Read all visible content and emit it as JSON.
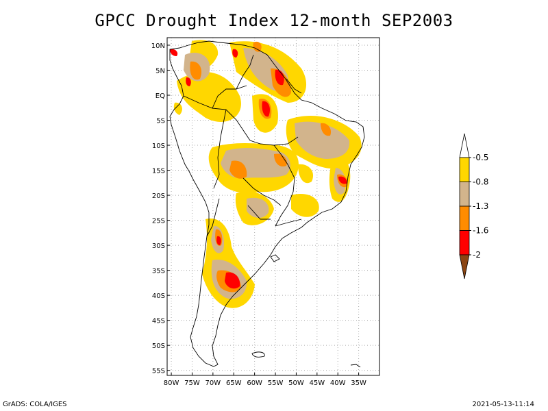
{
  "title": "GPCC Drought Index 12-month SEP2003",
  "footer": {
    "left": "GrADS: COLA/IGES",
    "right": "2021-05-13-11:14"
  },
  "map": {
    "lon_range": [
      -81,
      -30
    ],
    "lat_range": [
      -56,
      11.5
    ],
    "grid": "dotted",
    "lat_ticks": [
      {
        "value": 10,
        "label": "10N"
      },
      {
        "value": 5,
        "label": "5N"
      },
      {
        "value": 0,
        "label": "EQ"
      },
      {
        "value": -5,
        "label": "5S"
      },
      {
        "value": -10,
        "label": "10S"
      },
      {
        "value": -15,
        "label": "15S"
      },
      {
        "value": -20,
        "label": "20S"
      },
      {
        "value": -25,
        "label": "25S"
      },
      {
        "value": -30,
        "label": "30S"
      },
      {
        "value": -35,
        "label": "35S"
      },
      {
        "value": -40,
        "label": "40S"
      },
      {
        "value": -45,
        "label": "45S"
      },
      {
        "value": -50,
        "label": "50S"
      },
      {
        "value": -55,
        "label": "55S"
      }
    ],
    "lon_ticks": [
      {
        "value": -80,
        "label": "80W"
      },
      {
        "value": -75,
        "label": "75W"
      },
      {
        "value": -70,
        "label": "70W"
      },
      {
        "value": -65,
        "label": "65W"
      },
      {
        "value": -60,
        "label": "60W"
      },
      {
        "value": -55,
        "label": "55W"
      },
      {
        "value": -50,
        "label": "50W"
      },
      {
        "value": -45,
        "label": "45W"
      },
      {
        "value": -40,
        "label": "40W"
      },
      {
        "value": -35,
        "label": "35W"
      }
    ]
  },
  "legend": {
    "type": "colorbar",
    "levels": [
      {
        "label": "-0.5",
        "color": "#ffd700"
      },
      {
        "label": "-0.8",
        "color": "#d2b48c"
      },
      {
        "label": "-1.3",
        "color": "#ff8c00"
      },
      {
        "label": "-1.6",
        "color": "#ff0000"
      },
      {
        "label": "-2",
        "color": "#8b4513"
      }
    ],
    "colors": {
      "top_triangle": "#ffffff",
      "bin_1": "#ffd700",
      "bin_2": "#d2b48c",
      "bin_3": "#ff8c00",
      "bin_4": "#ff0000",
      "bottom_triangle": "#8b4513"
    }
  },
  "colors": {
    "yellow": "#ffd700",
    "tan": "#d2b48c",
    "orange": "#ff8c00",
    "red": "#ff0000",
    "brown": "#8b4513"
  }
}
